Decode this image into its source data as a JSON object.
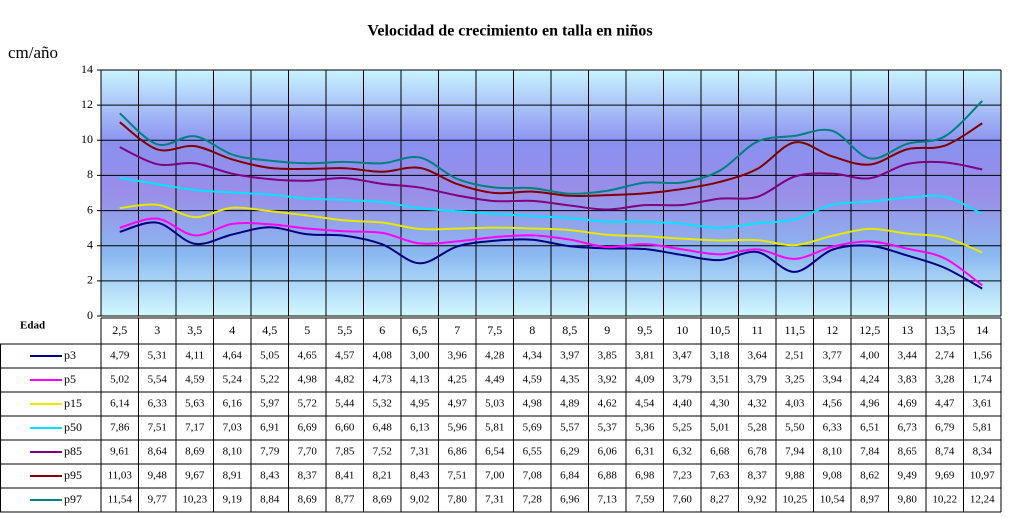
{
  "chart_data": {
    "type": "line",
    "title": "Velocidad de crecimiento en talla en niños",
    "ylabel": "cm/año",
    "xlabel": "Edad",
    "categories": [
      "2,5",
      "3",
      "3,5",
      "4",
      "4,5",
      "5",
      "5,5",
      "6",
      "6,5",
      "7",
      "7,5",
      "8",
      "8,5",
      "9",
      "9,5",
      "10",
      "10,5",
      "11",
      "11,5",
      "12",
      "12,5",
      "13",
      "13,5",
      "14"
    ],
    "ylim": [
      0,
      14
    ],
    "yticks": [
      0,
      2,
      4,
      6,
      8,
      10,
      12,
      14
    ],
    "grid": true,
    "series": [
      {
        "name": "p3",
        "color": "#000080",
        "values": [
          4.79,
          5.31,
          4.11,
          4.64,
          5.05,
          4.65,
          4.57,
          4.08,
          3.0,
          3.96,
          4.28,
          4.34,
          3.97,
          3.85,
          3.81,
          3.47,
          3.18,
          3.64,
          2.51,
          3.77,
          4.0,
          3.44,
          2.74,
          1.56
        ],
        "value_labels": [
          "4,79",
          "5,31",
          "4,11",
          "4,64",
          "5,05",
          "4,65",
          "4,57",
          "4,08",
          "3,00",
          "3,96",
          "4,28",
          "4,34",
          "3,97",
          "3,85",
          "3,81",
          "3,47",
          "3,18",
          "3,64",
          "2,51",
          "3,77",
          "4,00",
          "3,44",
          "2,74",
          "1,56"
        ]
      },
      {
        "name": "p5",
        "color": "#ff00ff",
        "values": [
          5.02,
          5.54,
          4.59,
          5.24,
          5.22,
          4.98,
          4.82,
          4.73,
          4.13,
          4.25,
          4.49,
          4.59,
          4.35,
          3.92,
          4.09,
          3.79,
          3.51,
          3.79,
          3.25,
          3.94,
          4.24,
          3.83,
          3.28,
          1.74
        ],
        "value_labels": [
          "5,02",
          "5,54",
          "4,59",
          "5,24",
          "5,22",
          "4,98",
          "4,82",
          "4,73",
          "4,13",
          "4,25",
          "4,49",
          "4,59",
          "4,35",
          "3,92",
          "4,09",
          "3,79",
          "3,51",
          "3,79",
          "3,25",
          "3,94",
          "4,24",
          "3,83",
          "3,28",
          "1,74"
        ]
      },
      {
        "name": "p15",
        "color": "#e8e800",
        "values": [
          6.14,
          6.33,
          5.63,
          6.16,
          5.97,
          5.72,
          5.44,
          5.32,
          4.95,
          4.97,
          5.03,
          4.98,
          4.89,
          4.62,
          4.54,
          4.4,
          4.3,
          4.32,
          4.03,
          4.56,
          4.96,
          4.69,
          4.47,
          3.61
        ],
        "value_labels": [
          "6,14",
          "6,33",
          "5,63",
          "6,16",
          "5,97",
          "5,72",
          "5,44",
          "5,32",
          "4,95",
          "4,97",
          "5,03",
          "4,98",
          "4,89",
          "4,62",
          "4,54",
          "4,40",
          "4,30",
          "4,32",
          "4,03",
          "4,56",
          "4,96",
          "4,69",
          "4,47",
          "3,61"
        ]
      },
      {
        "name": "p50",
        "color": "#00e5ff",
        "values": [
          7.86,
          7.51,
          7.17,
          7.03,
          6.91,
          6.69,
          6.6,
          6.48,
          6.13,
          5.96,
          5.81,
          5.69,
          5.57,
          5.37,
          5.36,
          5.25,
          5.01,
          5.28,
          5.5,
          6.33,
          6.51,
          6.73,
          6.79,
          5.81
        ],
        "value_labels": [
          "7,86",
          "7,51",
          "7,17",
          "7,03",
          "6,91",
          "6,69",
          "6,60",
          "6,48",
          "6,13",
          "5,96",
          "5,81",
          "5,69",
          "5,57",
          "5,37",
          "5,36",
          "5,25",
          "5,01",
          "5,28",
          "5,50",
          "6,33",
          "6,51",
          "6,73",
          "6,79",
          "5,81"
        ]
      },
      {
        "name": "p85",
        "color": "#800080",
        "values": [
          9.61,
          8.64,
          8.69,
          8.1,
          7.79,
          7.7,
          7.85,
          7.52,
          7.31,
          6.86,
          6.54,
          6.55,
          6.29,
          6.06,
          6.31,
          6.32,
          6.68,
          6.78,
          7.94,
          8.1,
          7.84,
          8.65,
          8.74,
          8.34
        ],
        "value_labels": [
          "9,61",
          "8,64",
          "8,69",
          "8,10",
          "7,79",
          "7,70",
          "7,85",
          "7,52",
          "7,31",
          "6,86",
          "6,54",
          "6,55",
          "6,29",
          "6,06",
          "6,31",
          "6,32",
          "6,68",
          "6,78",
          "7,94",
          "8,10",
          "7,84",
          "8,65",
          "8,74",
          "8,34"
        ]
      },
      {
        "name": "p95",
        "color": "#800000",
        "values": [
          11.03,
          9.48,
          9.67,
          8.91,
          8.43,
          8.37,
          8.41,
          8.21,
          8.43,
          7.51,
          7.0,
          7.08,
          6.84,
          6.88,
          6.98,
          7.23,
          7.63,
          8.37,
          9.88,
          9.08,
          8.62,
          9.49,
          9.69,
          10.97
        ],
        "value_labels": [
          "11,03",
          "9,48",
          "9,67",
          "8,91",
          "8,43",
          "8,37",
          "8,41",
          "8,21",
          "8,43",
          "7,51",
          "7,00",
          "7,08",
          "6,84",
          "6,88",
          "6,98",
          "7,23",
          "7,63",
          "8,37",
          "9,88",
          "9,08",
          "8,62",
          "9,49",
          "9,69",
          "10,97"
        ]
      },
      {
        "name": "p97",
        "color": "#008080",
        "values": [
          11.54,
          9.77,
          10.23,
          9.19,
          8.84,
          8.69,
          8.77,
          8.69,
          9.02,
          7.8,
          7.31,
          7.28,
          6.96,
          7.13,
          7.59,
          7.6,
          8.27,
          9.92,
          10.25,
          10.54,
          8.97,
          9.8,
          10.22,
          12.24
        ],
        "value_labels": [
          "11,54",
          "9,77",
          "10,23",
          "9,19",
          "8,84",
          "8,69",
          "8,77",
          "8,69",
          "9,02",
          "7,80",
          "7,31",
          "7,28",
          "6,96",
          "7,13",
          "7,59",
          "7,60",
          "8,27",
          "9,92",
          "10,25",
          "10,54",
          "8,97",
          "9,80",
          "10,22",
          "12,24"
        ]
      }
    ]
  }
}
